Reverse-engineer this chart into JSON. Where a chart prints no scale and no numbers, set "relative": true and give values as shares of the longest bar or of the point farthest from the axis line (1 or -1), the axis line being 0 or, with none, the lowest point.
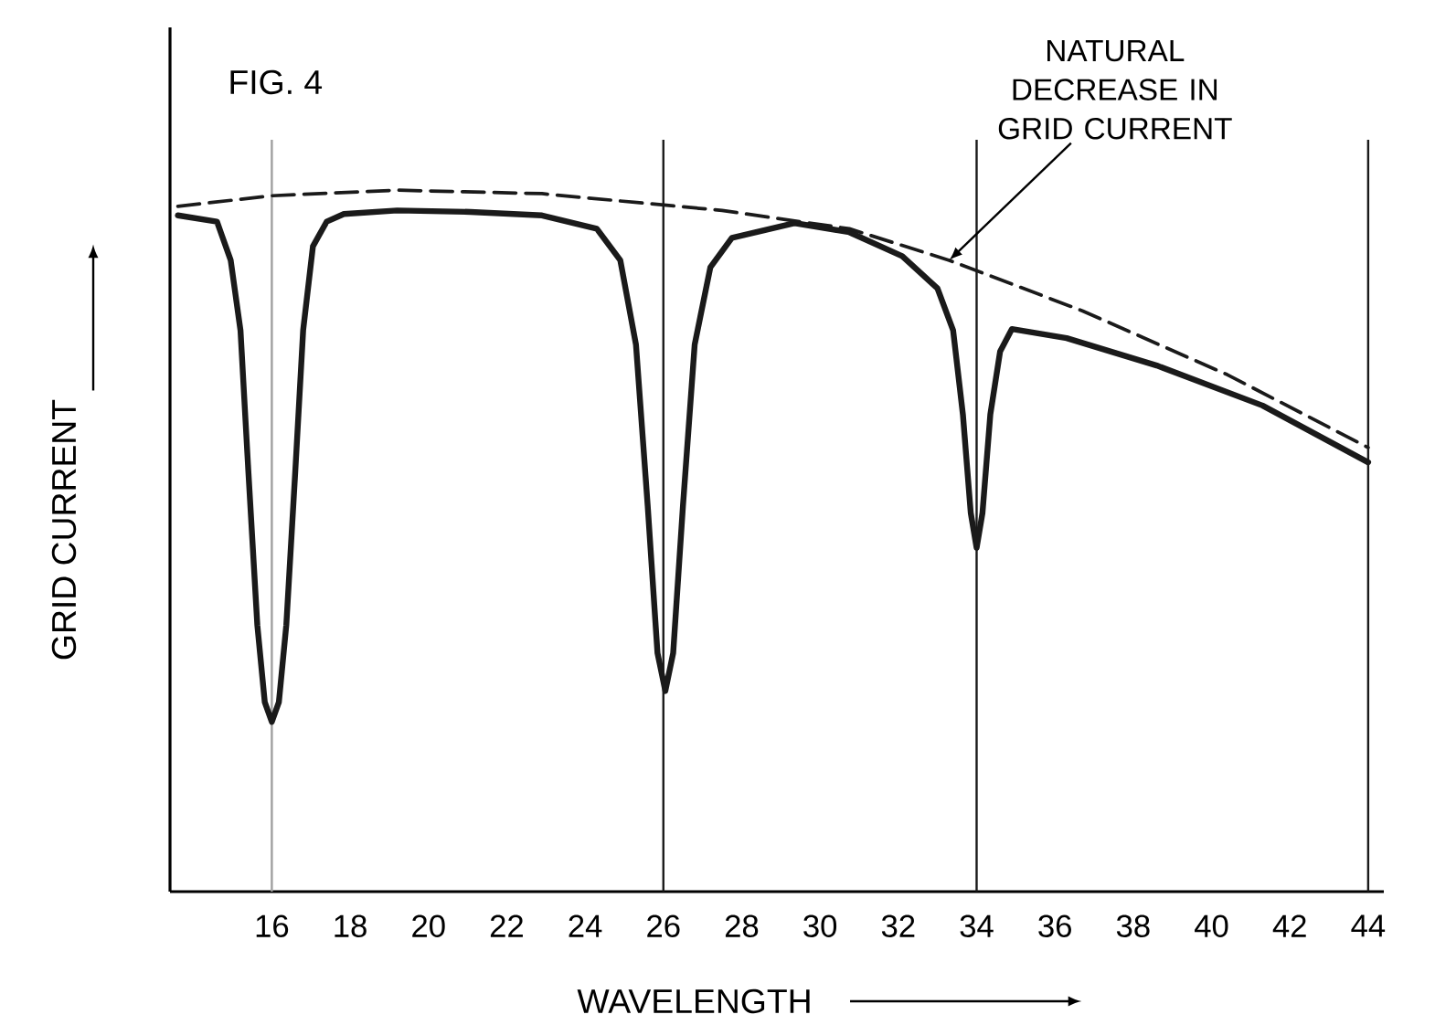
{
  "chart_data": {
    "type": "line",
    "title": "FIG. 4",
    "xlabel": "WAVELENGTH",
    "ylabel": "GRID CURRENT",
    "relative": true,
    "marker": "none",
    "xlim": [
      13.4,
      44.4
    ],
    "xticks": [
      16,
      18,
      20,
      22,
      24,
      26,
      28,
      30,
      32,
      34,
      36,
      38,
      40,
      42,
      44
    ],
    "series": [
      {
        "color": "#1a1a1a",
        "line_style": "solid",
        "x": [
          13.6,
          14.6,
          14.95,
          15.2,
          15.4,
          15.63,
          15.82,
          16,
          16.18,
          16.37,
          16.6,
          16.8,
          17.05,
          17.4,
          17.84,
          19.2,
          21.07,
          22.9,
          24.3,
          24.9,
          25.3,
          25.6,
          25.85,
          26.05,
          26.25,
          26.5,
          26.8,
          27.2,
          27.75,
          29.36,
          30.75,
          32.1,
          33.0,
          33.4,
          33.65,
          33.85,
          34.0,
          34.15,
          34.35,
          34.6,
          34.9,
          36.3,
          38.6,
          41.3,
          44
        ],
        "values": [
          0.964,
          0.955,
          0.9,
          0.8,
          0.6,
          0.38,
          0.27,
          0.242,
          0.27,
          0.38,
          0.6,
          0.8,
          0.92,
          0.955,
          0.966,
          0.971,
          0.969,
          0.964,
          0.945,
          0.9,
          0.78,
          0.55,
          0.34,
          0.286,
          0.34,
          0.55,
          0.78,
          0.89,
          0.932,
          0.953,
          0.94,
          0.906,
          0.86,
          0.8,
          0.68,
          0.54,
          0.49,
          0.54,
          0.68,
          0.77,
          0.802,
          0.789,
          0.75,
          0.693,
          0.612
        ]
      },
      {
        "color": "#1a1a1a",
        "line_style": "dashed",
        "x": [
          13.6,
          16,
          19.2,
          22.9,
          27.5,
          30.75,
          33.3,
          36.7,
          40.4,
          44
        ],
        "values": [
          0.977,
          0.992,
          1.0,
          0.995,
          0.971,
          0.945,
          0.9,
          0.828,
          0.737,
          0.633
        ]
      }
    ],
    "ref_lines": [
      {
        "axis": "x",
        "value": 16,
        "color": "#a0a0a0"
      },
      {
        "axis": "x",
        "value": 26,
        "color": "#1a1a1a"
      },
      {
        "axis": "x",
        "value": 34,
        "color": "#1a1a1a"
      },
      {
        "axis": "x",
        "value": 44,
        "color": "#1a1a1a"
      }
    ],
    "annotations": [
      {
        "text": "NATURAL DECREASE IN GRID CURRENT",
        "x": 33.3,
        "y": 0.9
      }
    ]
  }
}
